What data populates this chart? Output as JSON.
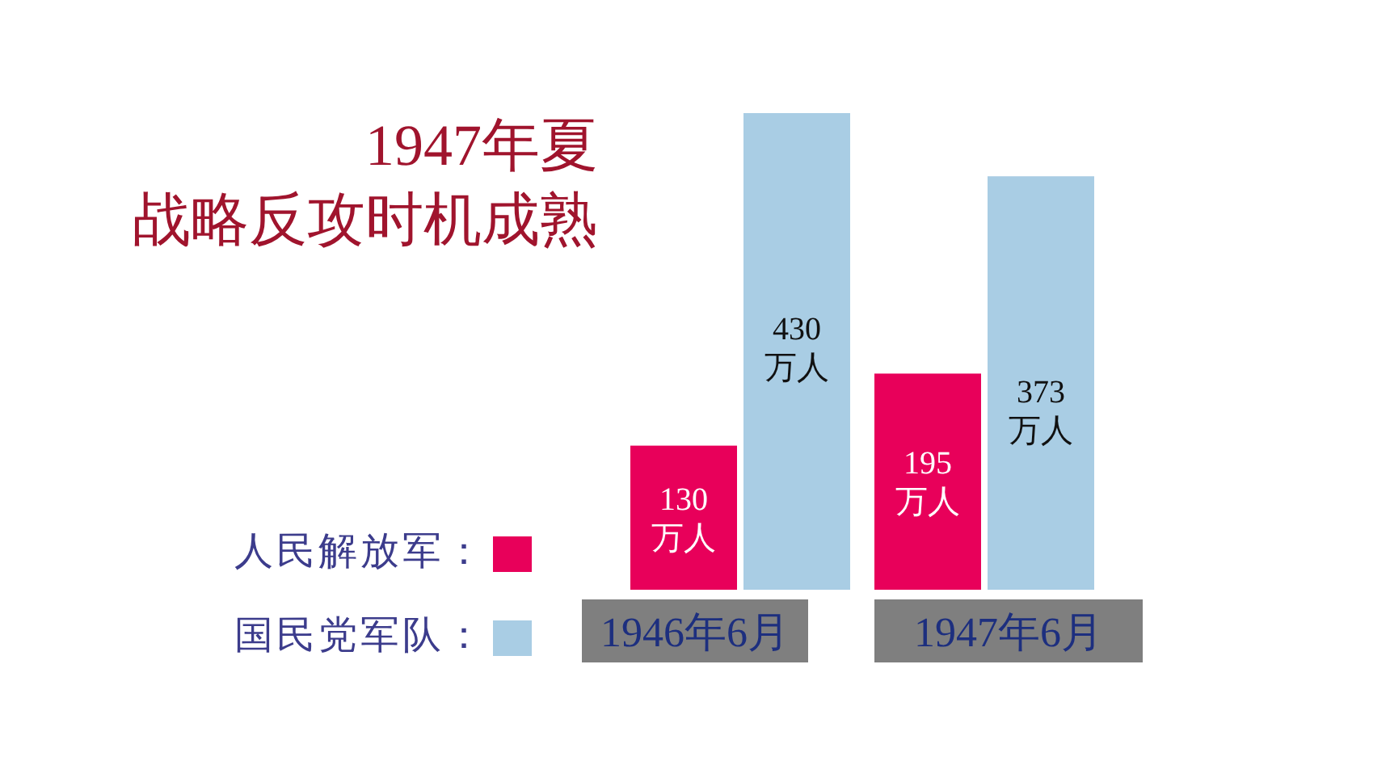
{
  "chart_data": {
    "type": "bar",
    "title": "1947年夏",
    "subtitle": "战略反攻时机成熟",
    "categories": [
      "1946年6月",
      "1947年6月"
    ],
    "series": [
      {
        "name": "人民解放军：",
        "color": "#e8005a",
        "values": [
          130,
          195
        ],
        "value_labels": [
          "130\n万人",
          "195\n万人"
        ]
      },
      {
        "name": "国民党军队：",
        "color": "#a9cde4",
        "values": [
          430,
          373
        ],
        "value_labels": [
          "430\n万人",
          "373\n万人"
        ]
      }
    ],
    "legend": "bottom left"
  }
}
